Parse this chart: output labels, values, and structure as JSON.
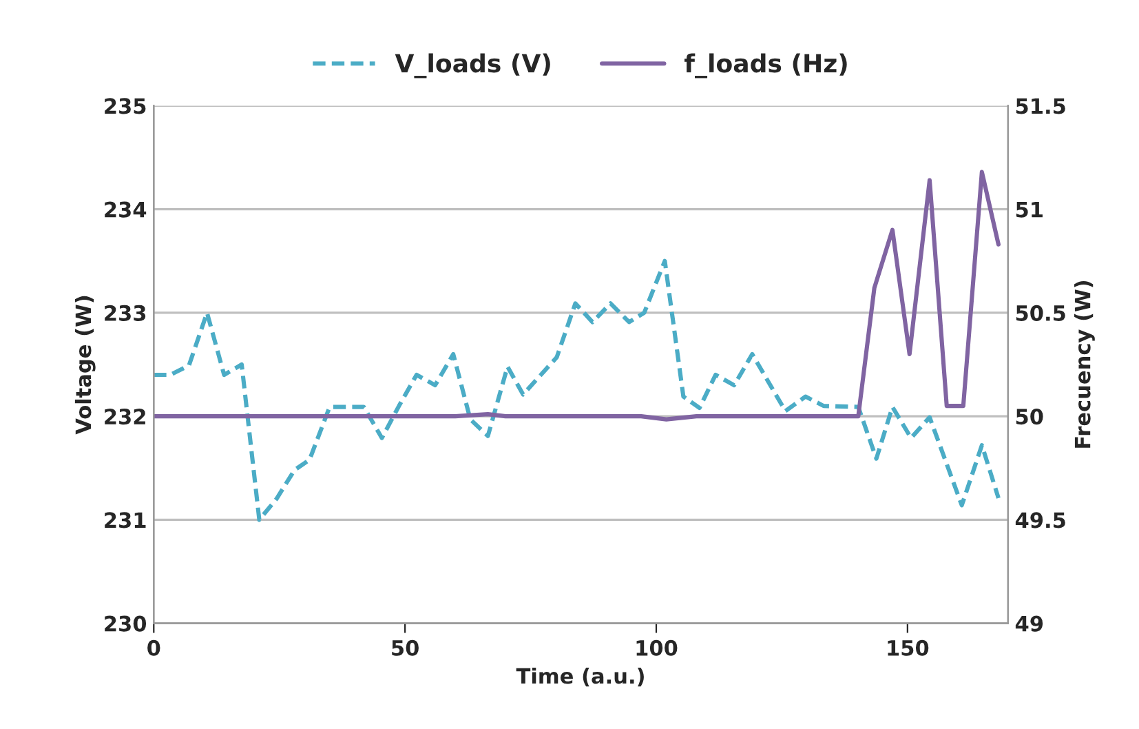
{
  "chart_data": {
    "type": "line",
    "xlabel": "Time (a.u.)",
    "ylabel": "Voltage (W)",
    "y2label": "Frecuency (W)",
    "xlim": [
      0,
      170
    ],
    "xticks": [
      0,
      50,
      100,
      150
    ],
    "ylim": [
      230,
      235
    ],
    "yticks": [
      230,
      231,
      232,
      233,
      234,
      235
    ],
    "y2lim": [
      49,
      51.5
    ],
    "y2ticks": [
      49,
      49.5,
      50,
      50.5,
      51,
      51.5
    ],
    "grid": "y",
    "legend": "top",
    "marker": "none",
    "series": [
      {
        "name": "V_loads (V)",
        "color": "#4bacc6",
        "line_style": "dashed",
        "x": [
          0,
          3.3,
          7,
          10.6,
          14,
          17.5,
          21,
          24.4,
          28,
          31,
          35,
          41.8,
          45.4,
          48.8,
          52.3,
          56,
          59.6,
          63,
          66.5,
          70.4,
          73.5,
          80.2,
          83.9,
          87.3,
          90.9,
          94.6,
          97.6,
          101.7,
          105.4,
          108.6,
          111.8,
          115.5,
          119.1,
          125.7,
          129.7,
          133.3,
          140.2,
          143.8,
          147,
          150.7,
          154.4,
          160.8,
          164.8,
          168.1
        ],
        "values": [
          232.4,
          232.4,
          232.49,
          233.0,
          232.4,
          232.5,
          231.0,
          231.2,
          231.48,
          231.58,
          232.09,
          232.09,
          231.79,
          232.1,
          232.4,
          232.3,
          232.6,
          231.97,
          231.81,
          232.48,
          232.21,
          232.57,
          233.09,
          232.91,
          233.09,
          232.91,
          233.0,
          233.5,
          232.19,
          232.08,
          232.4,
          232.3,
          232.6,
          232.05,
          232.19,
          232.1,
          232.09,
          231.59,
          232.09,
          231.79,
          231.99,
          231.14,
          231.72,
          231.21
        ]
      },
      {
        "name": "f_loads (Hz)",
        "color": "#8064a2",
        "line_style": "solid",
        "axis": "y2",
        "x": [
          0,
          60,
          66.5,
          70,
          97,
          102,
          108,
          140.2,
          143.4,
          147,
          150.4,
          154.4,
          157.8,
          161.1,
          164.8,
          168.1
        ],
        "values": [
          50,
          50,
          50.01,
          50,
          50,
          49.985,
          50,
          50,
          50.62,
          50.9,
          50.3,
          51.14,
          50.05,
          50.05,
          51.18,
          50.83
        ]
      }
    ]
  }
}
